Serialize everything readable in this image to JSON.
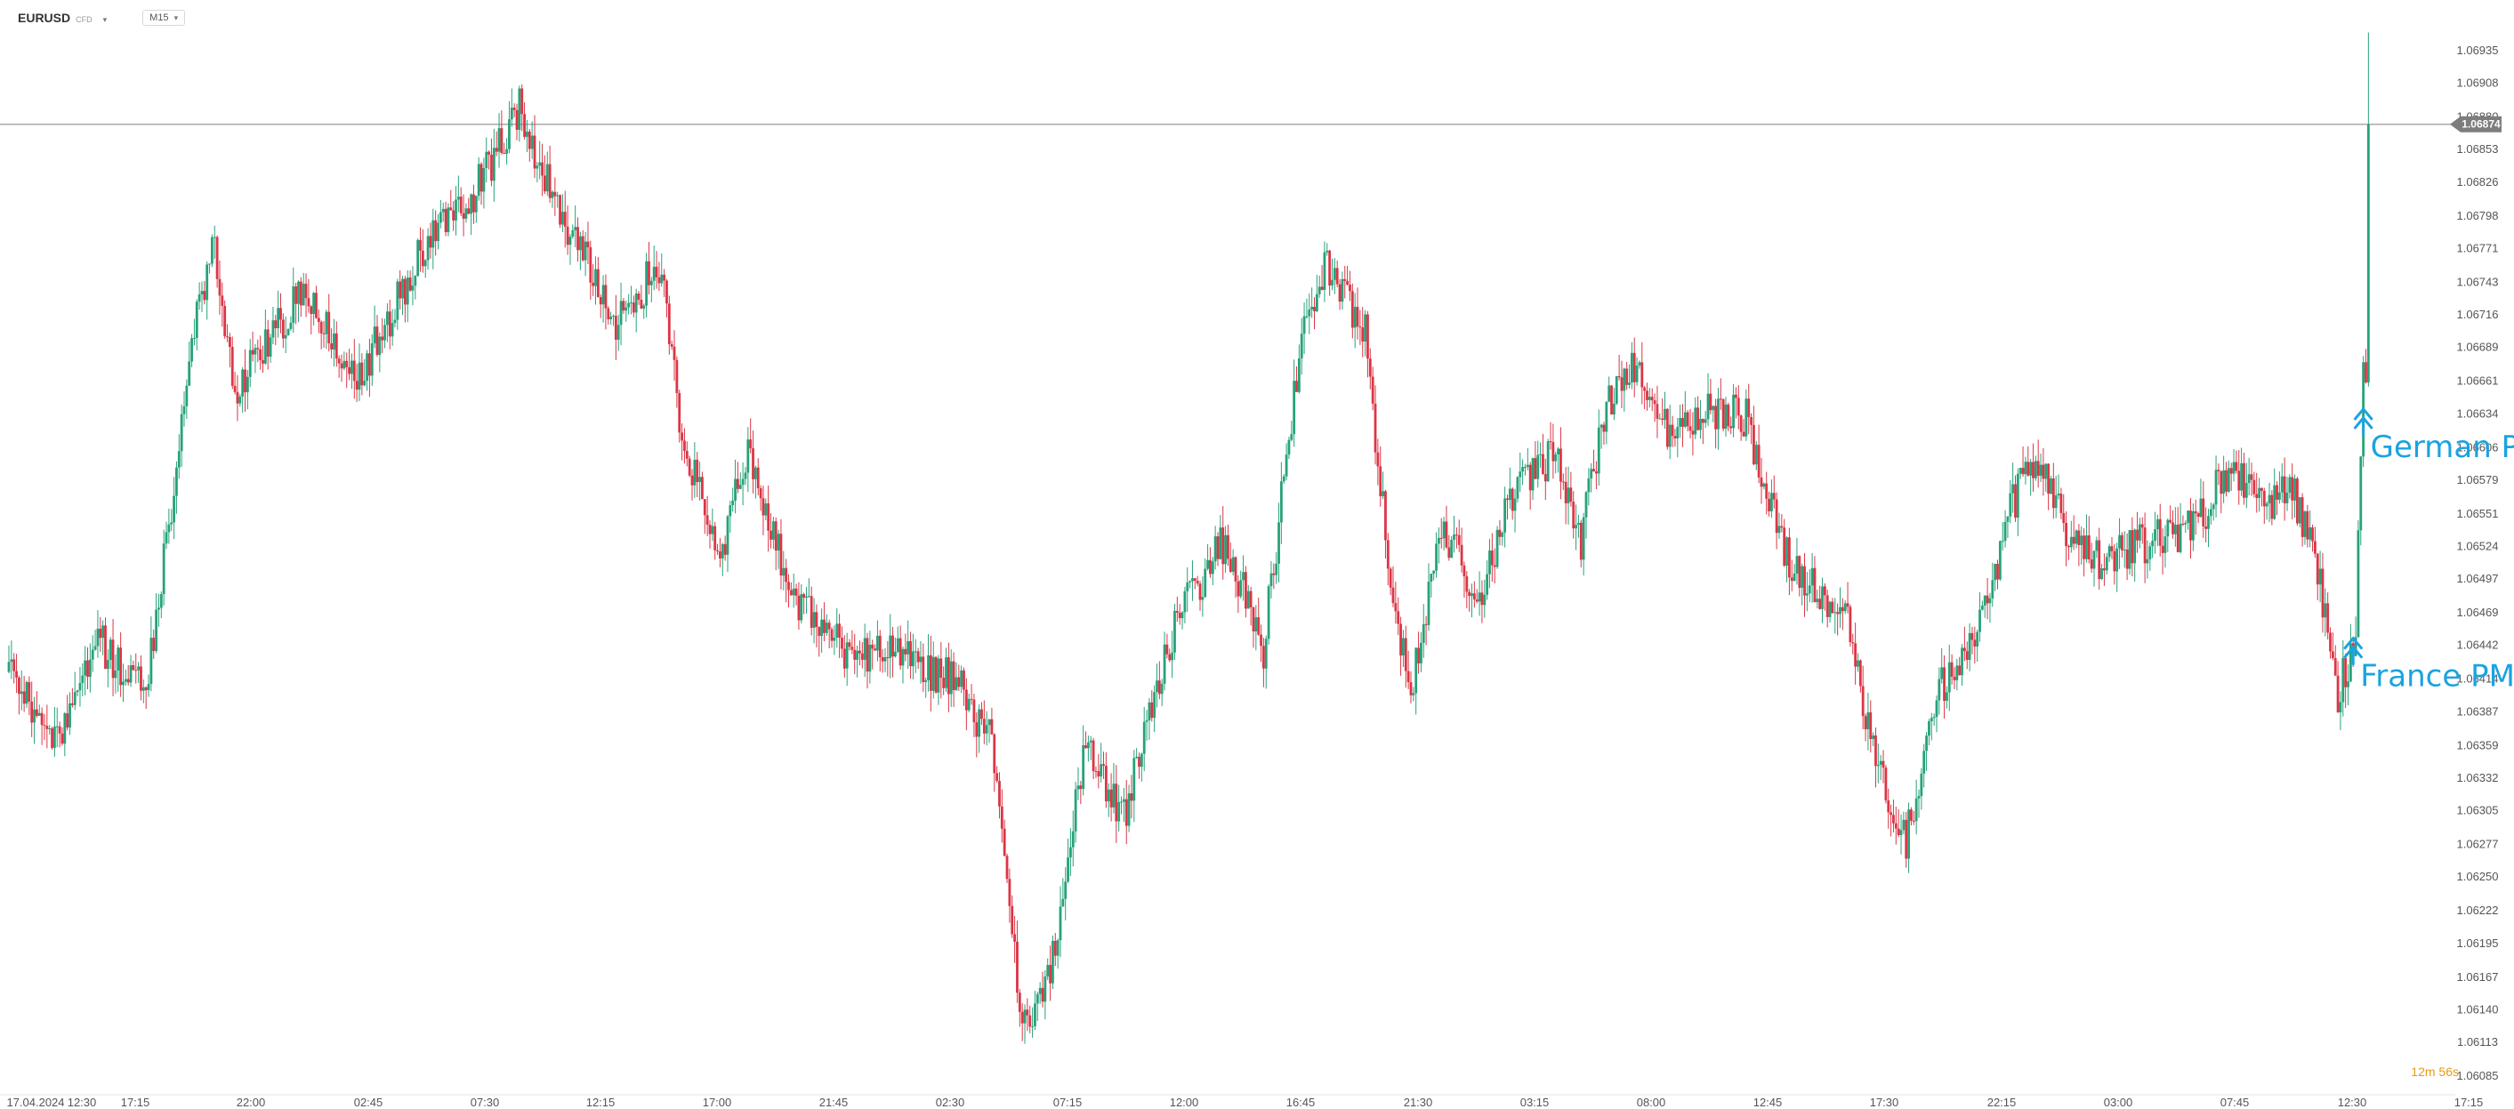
{
  "header": {
    "symbol": "EURUSD",
    "symbol_type": "CFD",
    "timeframe": "M15",
    "symbol_caret_icon": "chevron-down-icon",
    "timeframe_caret_icon": "chevron-down-icon"
  },
  "chart_data": {
    "type": "candlestick",
    "instrument": "EURUSD",
    "timeframe": "M15",
    "ylim": [
      1.0608,
      1.0696
    ],
    "y_ticks": [
      "1.06935",
      "1.06908",
      "1.06880",
      "1.06853",
      "1.06826",
      "1.06798",
      "1.06771",
      "1.06743",
      "1.06716",
      "1.06689",
      "1.06661",
      "1.06634",
      "1.06606",
      "1.06579",
      "1.06551",
      "1.06524",
      "1.06497",
      "1.06469",
      "1.06442",
      "1.06414",
      "1.06387",
      "1.06359",
      "1.06332",
      "1.06305",
      "1.06277",
      "1.06250",
      "1.06222",
      "1.06195",
      "1.06167",
      "1.06140",
      "1.06113",
      "1.06085"
    ],
    "x_ticks": [
      "17.04.2024",
      "12:30",
      "17:15",
      "22:00",
      "02:45",
      "07:30",
      "12:15",
      "17:00",
      "21:45",
      "02:30",
      "07:15",
      "12:00",
      "16:45",
      "21:30",
      "03:15",
      "08:00",
      "12:45",
      "17:30",
      "22:15",
      "03:00",
      "07:45",
      "12:30",
      "17:15"
    ],
    "current_price": "1.06874",
    "countdown": {
      "minutes": "12",
      "m_unit": "m",
      "seconds": "56",
      "s_unit": "s"
    },
    "colors": {
      "up": "#26a27a",
      "down": "#dc3545",
      "annotation": "#1aa3e0",
      "price_line": "#aaaaaa",
      "price_label_bg": "#7d7d7d",
      "timer": "#e49b0f"
    },
    "price_path": [
      {
        "t": 0,
        "p": 1.0642
      },
      {
        "t": 20,
        "p": 1.0636
      },
      {
        "t": 35,
        "p": 1.0645
      },
      {
        "t": 55,
        "p": 1.064
      },
      {
        "t": 75,
        "p": 1.0672
      },
      {
        "t": 82,
        "p": 1.0677
      },
      {
        "t": 90,
        "p": 1.0665
      },
      {
        "t": 105,
        "p": 1.067
      },
      {
        "t": 118,
        "p": 1.0674
      },
      {
        "t": 138,
        "p": 1.0666
      },
      {
        "t": 150,
        "p": 1.0671
      },
      {
        "t": 168,
        "p": 1.0679
      },
      {
        "t": 185,
        "p": 1.0682
      },
      {
        "t": 202,
        "p": 1.0689
      },
      {
        "t": 212,
        "p": 1.0683
      },
      {
        "t": 228,
        "p": 1.0676
      },
      {
        "t": 240,
        "p": 1.0671
      },
      {
        "t": 258,
        "p": 1.0676
      },
      {
        "t": 265,
        "p": 1.0663
      },
      {
        "t": 280,
        "p": 1.0651
      },
      {
        "t": 292,
        "p": 1.066
      },
      {
        "t": 310,
        "p": 1.0648
      },
      {
        "t": 330,
        "p": 1.0644
      },
      {
        "t": 355,
        "p": 1.0643
      },
      {
        "t": 375,
        "p": 1.0641
      },
      {
        "t": 388,
        "p": 1.0636
      },
      {
        "t": 400,
        "p": 1.0612
      },
      {
        "t": 410,
        "p": 1.0616
      },
      {
        "t": 425,
        "p": 1.0636
      },
      {
        "t": 440,
        "p": 1.063
      },
      {
        "t": 460,
        "p": 1.0646
      },
      {
        "t": 480,
        "p": 1.0653
      },
      {
        "t": 495,
        "p": 1.0644
      },
      {
        "t": 510,
        "p": 1.067
      },
      {
        "t": 520,
        "p": 1.0676
      },
      {
        "t": 535,
        "p": 1.067
      },
      {
        "t": 545,
        "p": 1.0649
      },
      {
        "t": 553,
        "p": 1.064
      },
      {
        "t": 565,
        "p": 1.0654
      },
      {
        "t": 580,
        "p": 1.0648
      },
      {
        "t": 595,
        "p": 1.0658
      },
      {
        "t": 610,
        "p": 1.066
      },
      {
        "t": 620,
        "p": 1.0653
      },
      {
        "t": 630,
        "p": 1.0664
      },
      {
        "t": 642,
        "p": 1.0668
      },
      {
        "t": 655,
        "p": 1.0661
      },
      {
        "t": 668,
        "p": 1.0664
      },
      {
        "t": 685,
        "p": 1.0663
      },
      {
        "t": 700,
        "p": 1.0652
      },
      {
        "t": 712,
        "p": 1.0649
      },
      {
        "t": 725,
        "p": 1.0646
      },
      {
        "t": 738,
        "p": 1.0633
      },
      {
        "t": 748,
        "p": 1.0628
      },
      {
        "t": 762,
        "p": 1.0641
      },
      {
        "t": 778,
        "p": 1.0646
      },
      {
        "t": 790,
        "p": 1.0656
      },
      {
        "t": 800,
        "p": 1.066
      },
      {
        "t": 812,
        "p": 1.0653
      },
      {
        "t": 825,
        "p": 1.0651
      },
      {
        "t": 845,
        "p": 1.0653
      },
      {
        "t": 862,
        "p": 1.0654
      },
      {
        "t": 875,
        "p": 1.0659
      },
      {
        "t": 888,
        "p": 1.0656
      },
      {
        "t": 900,
        "p": 1.0657
      },
      {
        "t": 910,
        "p": 1.0651
      },
      {
        "t": 918,
        "p": 1.064
      },
      {
        "t": 925,
        "p": 1.0645
      },
      {
        "t": 927,
        "p": 1.0661
      },
      {
        "t": 930,
        "p": 1.0685
      }
    ],
    "annotations": [
      {
        "label": "German PMIs",
        "t": 927,
        "p": 1.06635
      },
      {
        "label": "France PMIs",
        "t": 923,
        "p": 1.06445
      }
    ]
  }
}
